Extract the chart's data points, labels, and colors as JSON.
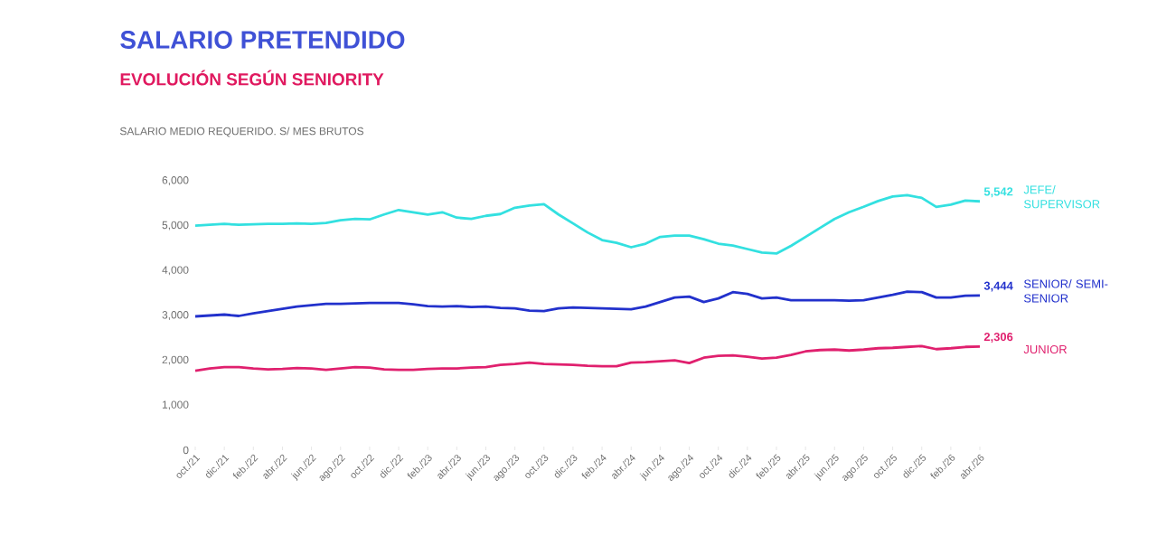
{
  "chart_data": {
    "type": "line",
    "title": "SALARIO PRETENDIDO",
    "subtitle": "EVOLUCIÓN SEGÚN SENIORITY",
    "ylabel": "SALARIO MEDIO REQUERIDO. S/ MES BRUTOS",
    "categories": [
      "oct./21",
      null,
      "dic./21",
      null,
      "feb./22",
      null,
      "abr./22",
      null,
      "jun./22",
      null,
      "ago./22",
      null,
      "oct./22",
      null,
      "dic./22",
      null,
      "feb./23",
      null,
      "abr./23",
      null,
      "jun./23",
      null,
      "ago./23",
      null,
      "oct./23",
      null,
      "dic./23",
      null,
      "feb./24",
      null,
      "abr./24",
      null,
      "jun./24",
      null,
      "ago./24",
      null,
      "oct./24",
      null,
      "dic./24",
      null,
      "feb./25",
      null,
      "abr./25",
      null,
      "jun./25",
      null,
      "ago./25",
      null,
      "oct./25",
      null,
      "dic./25",
      null,
      "feb./26",
      null,
      "abr./26"
    ],
    "ylim": [
      0,
      6000
    ],
    "yticks": [
      {
        "value": 0,
        "label": "0"
      },
      {
        "value": 1000,
        "label": "1,000"
      },
      {
        "value": 2000,
        "label": "2,000"
      },
      {
        "value": 3000,
        "label": "3,000"
      },
      {
        "value": 4000,
        "label": "4,000"
      },
      {
        "value": 5000,
        "label": "5,000"
      },
      {
        "value": 6000,
        "label": "6,000"
      }
    ],
    "series": [
      {
        "name": "JEFE/ SUPERVISOR",
        "color": "#33e0e0",
        "values": [
          5000,
          5020,
          5040,
          5020,
          5030,
          5040,
          5040,
          5050,
          5040,
          5060,
          5120,
          5150,
          5140,
          5250,
          5350,
          5300,
          5250,
          5300,
          5180,
          5150,
          5220,
          5260,
          5400,
          5450,
          5480,
          5250,
          5050,
          4850,
          4680,
          4620,
          4520,
          4600,
          4750,
          4780,
          4780,
          4700,
          4600,
          4560,
          4480,
          4400,
          4380,
          4550,
          4750,
          4950,
          5150,
          5300,
          5420,
          5550,
          5650,
          5680,
          5620,
          5420,
          5470,
          5560,
          5542
        ],
        "value_labels": [
          null,
          null,
          null,
          null,
          null,
          null,
          null,
          null,
          null,
          null,
          null,
          null,
          null,
          null,
          null,
          null,
          null,
          null,
          null,
          null,
          null,
          null,
          null,
          null,
          null,
          null,
          null,
          null,
          null,
          null,
          null,
          null,
          null,
          null,
          null,
          null,
          null,
          null,
          null,
          null,
          null,
          null,
          null,
          null,
          null,
          null,
          null,
          null,
          null,
          null,
          null,
          null,
          null,
          null,
          "5,542"
        ]
      },
      {
        "name": "SENIOR/ SEMI-SENIOR",
        "color": "#2231cc",
        "values": [
          2980,
          3000,
          3020,
          2990,
          3050,
          3100,
          3150,
          3200,
          3230,
          3260,
          3260,
          3270,
          3280,
          3280,
          3280,
          3250,
          3210,
          3200,
          3210,
          3190,
          3200,
          3170,
          3160,
          3110,
          3100,
          3160,
          3180,
          3170,
          3160,
          3150,
          3140,
          3200,
          3300,
          3400,
          3420,
          3300,
          3380,
          3520,
          3480,
          3380,
          3400,
          3340,
          3340,
          3340,
          3340,
          3330,
          3340,
          3400,
          3460,
          3530,
          3520,
          3400,
          3400,
          3440,
          3444
        ],
        "value_labels": [
          null,
          null,
          null,
          null,
          null,
          null,
          null,
          null,
          null,
          null,
          null,
          null,
          null,
          null,
          null,
          null,
          null,
          null,
          null,
          null,
          null,
          null,
          null,
          null,
          null,
          null,
          null,
          null,
          null,
          null,
          null,
          null,
          null,
          null,
          null,
          null,
          null,
          null,
          null,
          null,
          null,
          null,
          null,
          null,
          null,
          null,
          null,
          null,
          null,
          null,
          null,
          null,
          null,
          null,
          "3,444"
        ]
      },
      {
        "name": "JUNIOR",
        "color": "#e0206e",
        "values": [
          1770,
          1820,
          1850,
          1850,
          1820,
          1800,
          1810,
          1830,
          1820,
          1790,
          1820,
          1850,
          1840,
          1800,
          1790,
          1790,
          1810,
          1820,
          1820,
          1840,
          1850,
          1900,
          1920,
          1950,
          1920,
          1910,
          1900,
          1880,
          1870,
          1870,
          1950,
          1960,
          1980,
          2000,
          1940,
          2060,
          2100,
          2110,
          2080,
          2040,
          2060,
          2120,
          2200,
          2230,
          2240,
          2220,
          2240,
          2270,
          2280,
          2300,
          2320,
          2250,
          2270,
          2300,
          2306
        ],
        "value_labels": [
          null,
          null,
          null,
          null,
          null,
          null,
          null,
          null,
          null,
          null,
          null,
          null,
          null,
          null,
          null,
          null,
          null,
          null,
          null,
          null,
          null,
          null,
          null,
          null,
          null,
          null,
          null,
          null,
          null,
          null,
          null,
          null,
          null,
          null,
          null,
          null,
          null,
          null,
          null,
          null,
          null,
          null,
          null,
          null,
          null,
          null,
          null,
          null,
          null,
          null,
          null,
          null,
          null,
          null,
          "2,306"
        ]
      }
    ]
  }
}
